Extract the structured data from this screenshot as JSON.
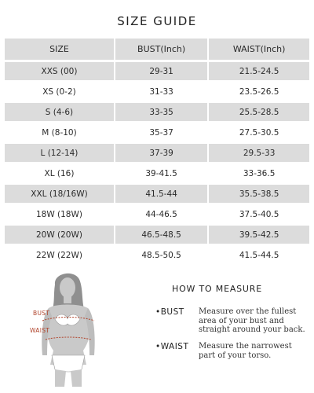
{
  "title": "SIZE GUIDE",
  "columns": [
    "SIZE",
    "BUST(Inch)",
    "WAIST(Inch)"
  ],
  "rows": [
    {
      "size": "XXS (00)",
      "bust": "29-31",
      "waist": "21.5-24.5"
    },
    {
      "size": "XS (0-2)",
      "bust": "31-33",
      "waist": "23.5-26.5"
    },
    {
      "size": "S (4-6)",
      "bust": "33-35",
      "waist": "25.5-28.5"
    },
    {
      "size": "M (8-10)",
      "bust": "35-37",
      "waist": "27.5-30.5"
    },
    {
      "size": "L (12-14)",
      "bust": "37-39",
      "waist": "29.5-33"
    },
    {
      "size": "XL (16)",
      "bust": "39-41.5",
      "waist": "33-36.5"
    },
    {
      "size": "XXL (18/16W)",
      "bust": "41.5-44",
      "waist": "35.5-38.5"
    },
    {
      "size": "18W (18W)",
      "bust": "44-46.5",
      "waist": "37.5-40.5"
    },
    {
      "size": "20W (20W)",
      "bust": "46.5-48.5",
      "waist": "39.5-42.5"
    },
    {
      "size": "22W (22W)",
      "bust": "48.5-50.5",
      "waist": "41.5-44.5"
    }
  ],
  "how_to_measure": {
    "title": "HOW TO MEASURE",
    "bust_label": "BUST",
    "bust_desc": "Measure over the fullest area of your bust and straight around your back.",
    "waist_label": "WAIST",
    "waist_desc": "Measure the narrowest part of your torso."
  },
  "figure": {
    "bust_label": "BUST",
    "waist_label": "WAIST"
  }
}
